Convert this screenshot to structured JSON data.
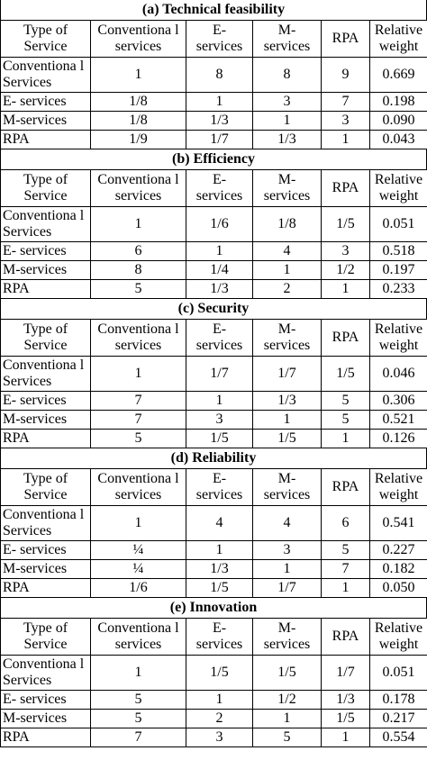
{
  "header": [
    "Type of Service",
    "Conventiona l services",
    "E- services",
    "M- services",
    "RPA",
    "Relative weight"
  ],
  "sections": [
    {
      "title": "(a) Technical feasibility",
      "rows": [
        [
          "Conventiona l Services",
          "1",
          "8",
          "8",
          "9",
          "0.669"
        ],
        [
          "E- services",
          "1/8",
          "1",
          "3",
          "7",
          "0.198"
        ],
        [
          "M-services",
          "1/8",
          "1/3",
          "1",
          "3",
          "0.090"
        ],
        [
          "RPA",
          "1/9",
          "1/7",
          "1/3",
          "1",
          "0.043"
        ]
      ]
    },
    {
      "title": "(b) Efficiency",
      "rows": [
        [
          "Conventiona l Services",
          "1",
          "1/6",
          "1/8",
          "1/5",
          "0.051"
        ],
        [
          "E- services",
          "6",
          "1",
          "4",
          "3",
          "0.518"
        ],
        [
          "M-services",
          "8",
          "1/4",
          "1",
          "1/2",
          "0.197"
        ],
        [
          "RPA",
          "5",
          "1/3",
          "2",
          "1",
          "0.233"
        ]
      ]
    },
    {
      "title": "(c) Security",
      "rows": [
        [
          "Conventiona l Services",
          "1",
          "1/7",
          "1/7",
          "1/5",
          "0.046"
        ],
        [
          "E- services",
          "7",
          "1",
          "1/3",
          "5",
          "0.306"
        ],
        [
          "M-services",
          "7",
          "3",
          "1",
          "5",
          "0.521"
        ],
        [
          "RPA",
          "5",
          "1/5",
          "1/5",
          "1",
          "0.126"
        ]
      ]
    },
    {
      "title": "(d) Reliability",
      "rows": [
        [
          "Conventiona l Services",
          "1",
          "4",
          "4",
          "6",
          "0.541"
        ],
        [
          "E- services",
          "¼",
          "1",
          "3",
          "5",
          "0.227"
        ],
        [
          "M-services",
          "¼",
          "1/3",
          "1",
          "7",
          "0.182"
        ],
        [
          "RPA",
          "1/6",
          "1/5",
          "1/7",
          "1",
          "0.050"
        ]
      ]
    },
    {
      "title": "(e) Innovation",
      "rows": [
        [
          "Conventiona l Services",
          "1",
          "1/5",
          "1/5",
          "1/7",
          "0.051"
        ],
        [
          "E- services",
          "5",
          "1",
          "1/2",
          "1/3",
          "0.178"
        ],
        [
          "M-services",
          "5",
          "2",
          "1",
          "1/5",
          "0.217"
        ],
        [
          "RPA",
          "7",
          "3",
          "5",
          "1",
          "0.554"
        ]
      ]
    }
  ]
}
